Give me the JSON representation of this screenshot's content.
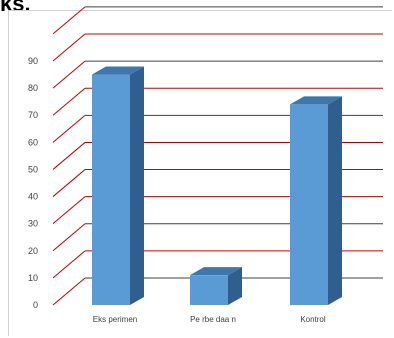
{
  "top_fragment": "ks.",
  "chart_data": {
    "type": "bar",
    "style": "3d-column",
    "categories": [
      "Eks perimen",
      "Pe rbe daa n",
      "Kontrol"
    ],
    "values": [
      85,
      11,
      74
    ],
    "ylim": [
      0,
      90
    ],
    "yticks": [
      0,
      10,
      20,
      30,
      40,
      50,
      60,
      70,
      80,
      90
    ],
    "grid": true,
    "legend": "none",
    "colors": {
      "bar_front": "#5b9bd5",
      "bar_top": "#3f77ad",
      "bar_side": "#2f5f8e",
      "grid_red": "#c00000",
      "grid_dark": "#404040"
    }
  }
}
